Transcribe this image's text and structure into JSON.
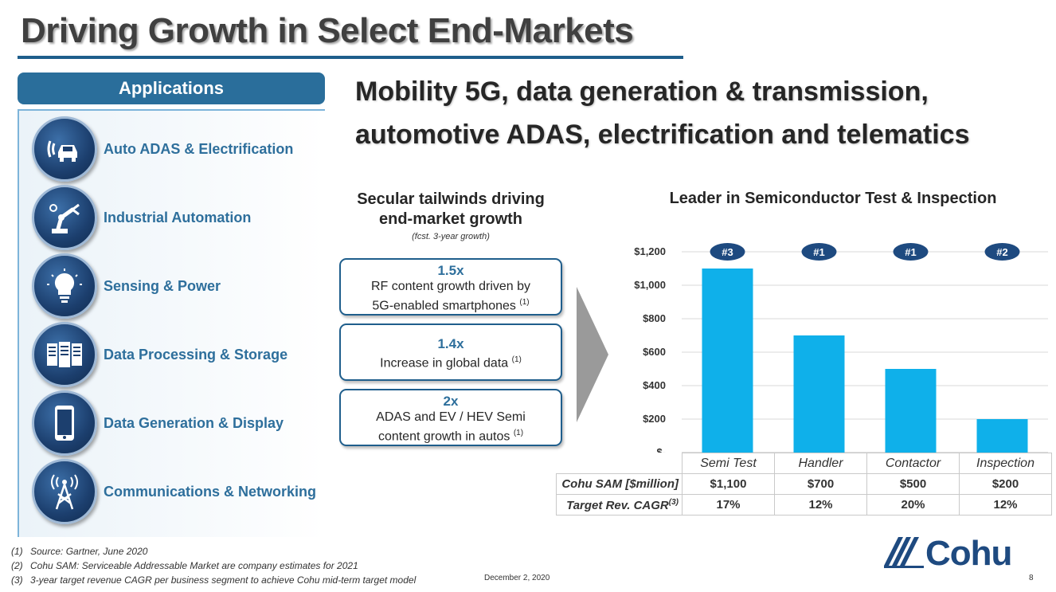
{
  "title": "Driving Growth in Select End-Markets",
  "applications": {
    "header": "Applications",
    "items": [
      {
        "label": "Auto ADAS & Electrification",
        "icon": "car-radar-icon"
      },
      {
        "label": "Industrial Automation",
        "icon": "robot-arm-icon"
      },
      {
        "label": "Sensing & Power",
        "icon": "lightbulb-icon"
      },
      {
        "label": "Data Processing & Storage",
        "icon": "server-rack-icon"
      },
      {
        "label": "Data Generation & Display",
        "icon": "smartphone-icon"
      },
      {
        "label": "Communications & Networking",
        "icon": "cell-tower-icon"
      }
    ]
  },
  "headline": {
    "line1": "Mobility 5G, data generation & transmission,",
    "line2": "automotive ADAS, electrification and telematics"
  },
  "secular": {
    "title_line1": "Secular tailwinds driving",
    "title_line2": "end-market growth",
    "subtitle": "(fcst. 3-year growth)",
    "boxes": [
      {
        "value": "1.5x",
        "line1": "RF content growth driven by",
        "line2": "5G-enabled smartphones",
        "note": "(1)"
      },
      {
        "value": "1.4x",
        "line1": "Increase in global data",
        "line2": "",
        "note": "(1)"
      },
      {
        "value": "2x",
        "line1": "ADAS and EV / HEV Semi",
        "line2": "content growth in autos",
        "note": "(1)"
      }
    ]
  },
  "chart_data": {
    "type": "bar",
    "title": "Leader in Semiconductor Test & Inspection",
    "categories": [
      "Semi Test",
      "Handler",
      "Contactor",
      "Inspection"
    ],
    "values": [
      1100,
      700,
      500,
      200
    ],
    "ranks": [
      "#3",
      "#1",
      "#1",
      "#2"
    ],
    "yticks": [
      "$-",
      "$200",
      "$400",
      "$600",
      "$800",
      "$1,000",
      "$1,200"
    ],
    "ylim": [
      0,
      1200
    ],
    "ylabel": "",
    "xlabel": "",
    "bar_color": "#0fb0ea",
    "rank_color": "#1e4a80"
  },
  "table": {
    "rows": [
      {
        "label": "Cohu SAM [$million]",
        "note": "",
        "cells": [
          "$1,100",
          "$700",
          "$500",
          "$200"
        ]
      },
      {
        "label": "Target Rev. CAGR",
        "note": "(3)",
        "cells": [
          "17%",
          "12%",
          "20%",
          "12%"
        ]
      }
    ]
  },
  "footnotes": [
    {
      "num": "(1)",
      "text": "Source: Gartner, June 2020"
    },
    {
      "num": "(2)",
      "text": "Cohu SAM: Serviceable Addressable Market are company estimates for 2021"
    },
    {
      "num": "(3)",
      "text": "3-year target revenue CAGR per business segment to achieve Cohu mid-term target model"
    }
  ],
  "footer": {
    "date": "December 2, 2020",
    "page": "8",
    "logo": "Cohu"
  }
}
